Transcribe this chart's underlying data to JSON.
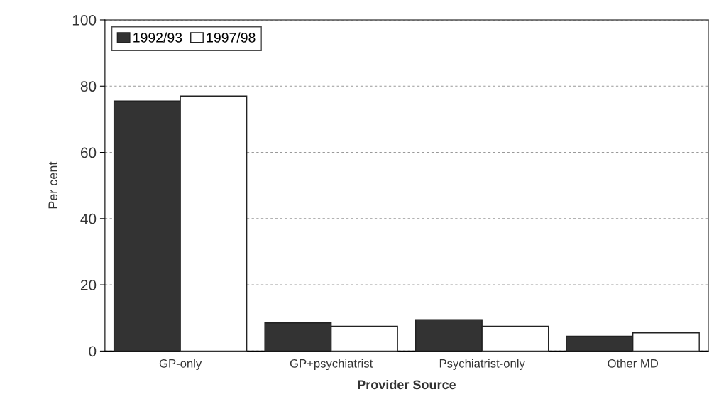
{
  "chart_data": {
    "type": "bar",
    "xlabel": "Provider Source",
    "ylabel": "Per cent",
    "categories": [
      "GP-only",
      "GP+psychiatrist",
      "Psychiatrist-only",
      "Other MD"
    ],
    "series": [
      {
        "name": "1992/93",
        "color": "#333333",
        "values": [
          75.5,
          8.5,
          9.5,
          4.5
        ]
      },
      {
        "name": "1997/98",
        "color": "#ffffff",
        "values": [
          77,
          7.5,
          7.5,
          5.5
        ]
      }
    ],
    "ylim": [
      0,
      100
    ],
    "yticks": [
      0,
      20,
      40,
      60,
      80,
      100
    ],
    "grid": "y",
    "legend": "top left"
  }
}
